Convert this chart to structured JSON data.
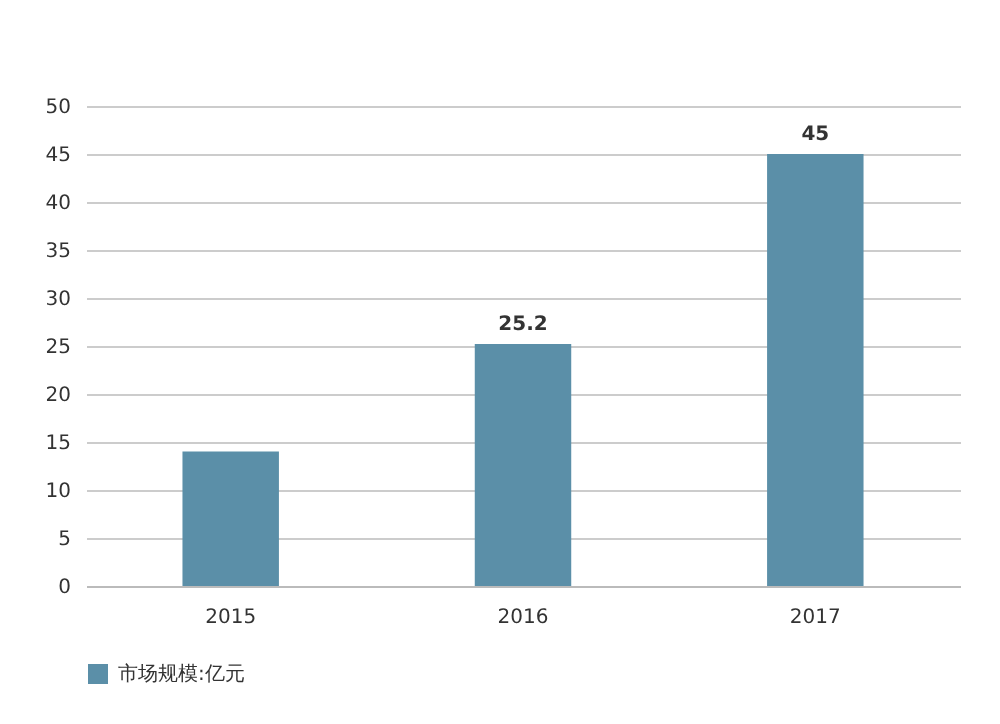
{
  "chart_data": {
    "type": "bar",
    "categories": [
      "2015",
      "2016",
      "2017"
    ],
    "series": [
      {
        "name": "市场规模:亿元",
        "color": "#5b8fa8",
        "values": [
          14,
          25.2,
          45
        ],
        "value_labels": [
          null,
          "25.2",
          "45"
        ]
      }
    ],
    "ylim": [
      0,
      50
    ],
    "yticks": [
      0,
      5,
      10,
      15,
      20,
      25,
      30,
      35,
      40,
      45,
      50
    ],
    "grid": "y",
    "legend": "bottom"
  }
}
